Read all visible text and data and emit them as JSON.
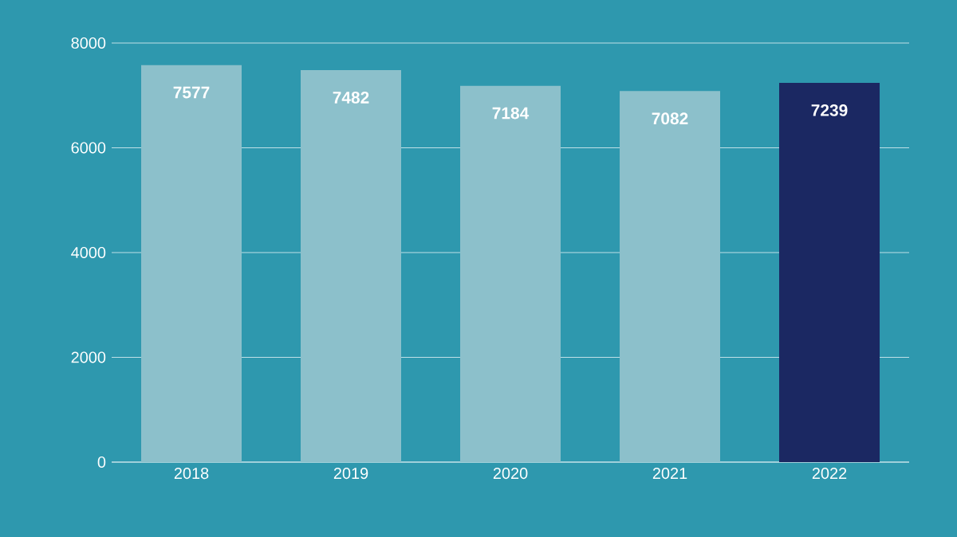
{
  "chart_data": {
    "type": "bar",
    "categories": [
      "2018",
      "2019",
      "2020",
      "2021",
      "2022"
    ],
    "values": [
      7577,
      7482,
      7184,
      7082,
      7239
    ],
    "colors": [
      "#8cc0cb",
      "#8cc0cb",
      "#8cc0cb",
      "#8cc0cb",
      "#1b2862"
    ],
    "ylim": [
      0,
      8000
    ],
    "yticks": [
      0,
      2000,
      4000,
      6000,
      8000
    ],
    "grid": "y",
    "data_labels": true
  }
}
